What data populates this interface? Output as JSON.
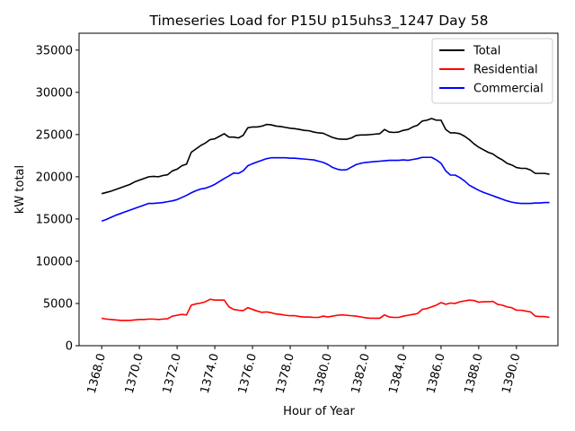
{
  "chart_data": {
    "type": "line",
    "title": "Timeseries Load for P15U p15uhs3_1247  Day 58",
    "xlabel": "Hour of Year",
    "ylabel": "kW total",
    "xlim": [
      1366.8,
      1392.2
    ],
    "ylim": [
      0,
      37000
    ],
    "xticks": [
      1368,
      1370,
      1372,
      1374,
      1376,
      1378,
      1380,
      1382,
      1384,
      1386,
      1388,
      1390
    ],
    "xtick_labels": [
      "1368.0",
      "1370.0",
      "1372.0",
      "1374.0",
      "1376.0",
      "1378.0",
      "1380.0",
      "1382.0",
      "1384.0",
      "1386.0",
      "1388.0",
      "1390.0"
    ],
    "yticks": [
      0,
      5000,
      10000,
      15000,
      20000,
      25000,
      30000,
      35000
    ],
    "ytick_labels": [
      "0",
      "5000",
      "10000",
      "15000",
      "20000",
      "25000",
      "30000",
      "35000"
    ],
    "legend_position": "top-right",
    "x": [
      1368.0,
      1368.25,
      1368.5,
      1368.75,
      1369.0,
      1369.25,
      1369.5,
      1369.75,
      1370.0,
      1370.25,
      1370.5,
      1370.75,
      1371.0,
      1371.25,
      1371.5,
      1371.75,
      1372.0,
      1372.25,
      1372.5,
      1372.75,
      1373.0,
      1373.25,
      1373.5,
      1373.75,
      1374.0,
      1374.25,
      1374.5,
      1374.75,
      1375.0,
      1375.25,
      1375.5,
      1375.75,
      1376.0,
      1376.25,
      1376.5,
      1376.75,
      1377.0,
      1377.25,
      1377.5,
      1377.75,
      1378.0,
      1378.25,
      1378.5,
      1378.75,
      1379.0,
      1379.25,
      1379.5,
      1379.75,
      1380.0,
      1380.25,
      1380.5,
      1380.75,
      1381.0,
      1381.25,
      1381.5,
      1381.75,
      1382.0,
      1382.25,
      1382.5,
      1382.75,
      1383.0,
      1383.25,
      1383.5,
      1383.75,
      1384.0,
      1384.25,
      1384.5,
      1384.75,
      1385.0,
      1385.25,
      1385.5,
      1385.75,
      1386.0,
      1386.25,
      1386.5,
      1386.75,
      1387.0,
      1387.25,
      1387.5,
      1387.75,
      1388.0,
      1388.25,
      1388.5,
      1388.75,
      1389.0,
      1389.25,
      1389.5,
      1389.75,
      1390.0,
      1390.25,
      1390.5,
      1390.75,
      1391.0,
      1391.25,
      1391.5,
      1391.75
    ],
    "series": [
      {
        "name": "Total",
        "color": "#000000",
        "values": [
          18000,
          18150,
          18300,
          18500,
          18700,
          18900,
          19100,
          19400,
          19600,
          19800,
          20000,
          20050,
          20000,
          20150,
          20250,
          20700,
          20900,
          21300,
          21500,
          22900,
          23300,
          23700,
          24000,
          24400,
          24500,
          24800,
          25100,
          24700,
          24700,
          24600,
          24900,
          25800,
          25900,
          25900,
          26000,
          26200,
          26150,
          26000,
          25950,
          25850,
          25750,
          25700,
          25600,
          25500,
          25450,
          25300,
          25200,
          25150,
          24900,
          24650,
          24500,
          24450,
          24450,
          24600,
          24900,
          24950,
          24950,
          25000,
          25050,
          25100,
          25600,
          25300,
          25250,
          25300,
          25500,
          25600,
          25900,
          26100,
          26600,
          26700,
          26900,
          26700,
          26700,
          25600,
          25200,
          25200,
          25100,
          24800,
          24400,
          23900,
          23500,
          23200,
          22900,
          22700,
          22300,
          22000,
          21600,
          21400,
          21100,
          21000,
          21000,
          20800,
          20400,
          20400,
          20400,
          20300
        ]
      },
      {
        "name": "Residential",
        "color": "#ff0000",
        "values": [
          3250,
          3150,
          3100,
          3050,
          3000,
          3000,
          3000,
          3050,
          3100,
          3100,
          3150,
          3150,
          3100,
          3150,
          3200,
          3500,
          3600,
          3700,
          3650,
          4800,
          4950,
          5050,
          5200,
          5500,
          5400,
          5400,
          5400,
          4600,
          4300,
          4200,
          4150,
          4500,
          4300,
          4100,
          3950,
          4000,
          3900,
          3750,
          3700,
          3600,
          3550,
          3550,
          3450,
          3400,
          3400,
          3350,
          3350,
          3500,
          3400,
          3500,
          3600,
          3650,
          3600,
          3550,
          3500,
          3400,
          3300,
          3250,
          3250,
          3250,
          3650,
          3400,
          3350,
          3350,
          3500,
          3600,
          3700,
          3800,
          4300,
          4400,
          4600,
          4800,
          5100,
          4900,
          5050,
          5000,
          5200,
          5300,
          5400,
          5350,
          5150,
          5200,
          5200,
          5250,
          4900,
          4800,
          4600,
          4500,
          4200,
          4200,
          4100,
          4000,
          3500,
          3450,
          3450,
          3350
        ]
      },
      {
        "name": "Commercial",
        "color": "#0000ff",
        "values": [
          14750,
          14950,
          15200,
          15450,
          15650,
          15850,
          16050,
          16250,
          16450,
          16650,
          16850,
          16850,
          16900,
          16950,
          17050,
          17150,
          17300,
          17550,
          17800,
          18100,
          18350,
          18550,
          18650,
          18850,
          19100,
          19450,
          19800,
          20100,
          20450,
          20400,
          20700,
          21300,
          21550,
          21750,
          21950,
          22150,
          22250,
          22250,
          22250,
          22250,
          22200,
          22200,
          22150,
          22100,
          22050,
          22000,
          21850,
          21700,
          21450,
          21100,
          20900,
          20800,
          20850,
          21150,
          21450,
          21600,
          21700,
          21750,
          21800,
          21850,
          21900,
          21950,
          21950,
          21950,
          22000,
          21950,
          22050,
          22150,
          22300,
          22300,
          22300,
          22000,
          21600,
          20700,
          20200,
          20200,
          19900,
          19500,
          19000,
          18700,
          18400,
          18150,
          17950,
          17750,
          17550,
          17350,
          17150,
          17000,
          16900,
          16850,
          16850,
          16850,
          16900,
          16900,
          16950,
          16950
        ]
      }
    ]
  }
}
